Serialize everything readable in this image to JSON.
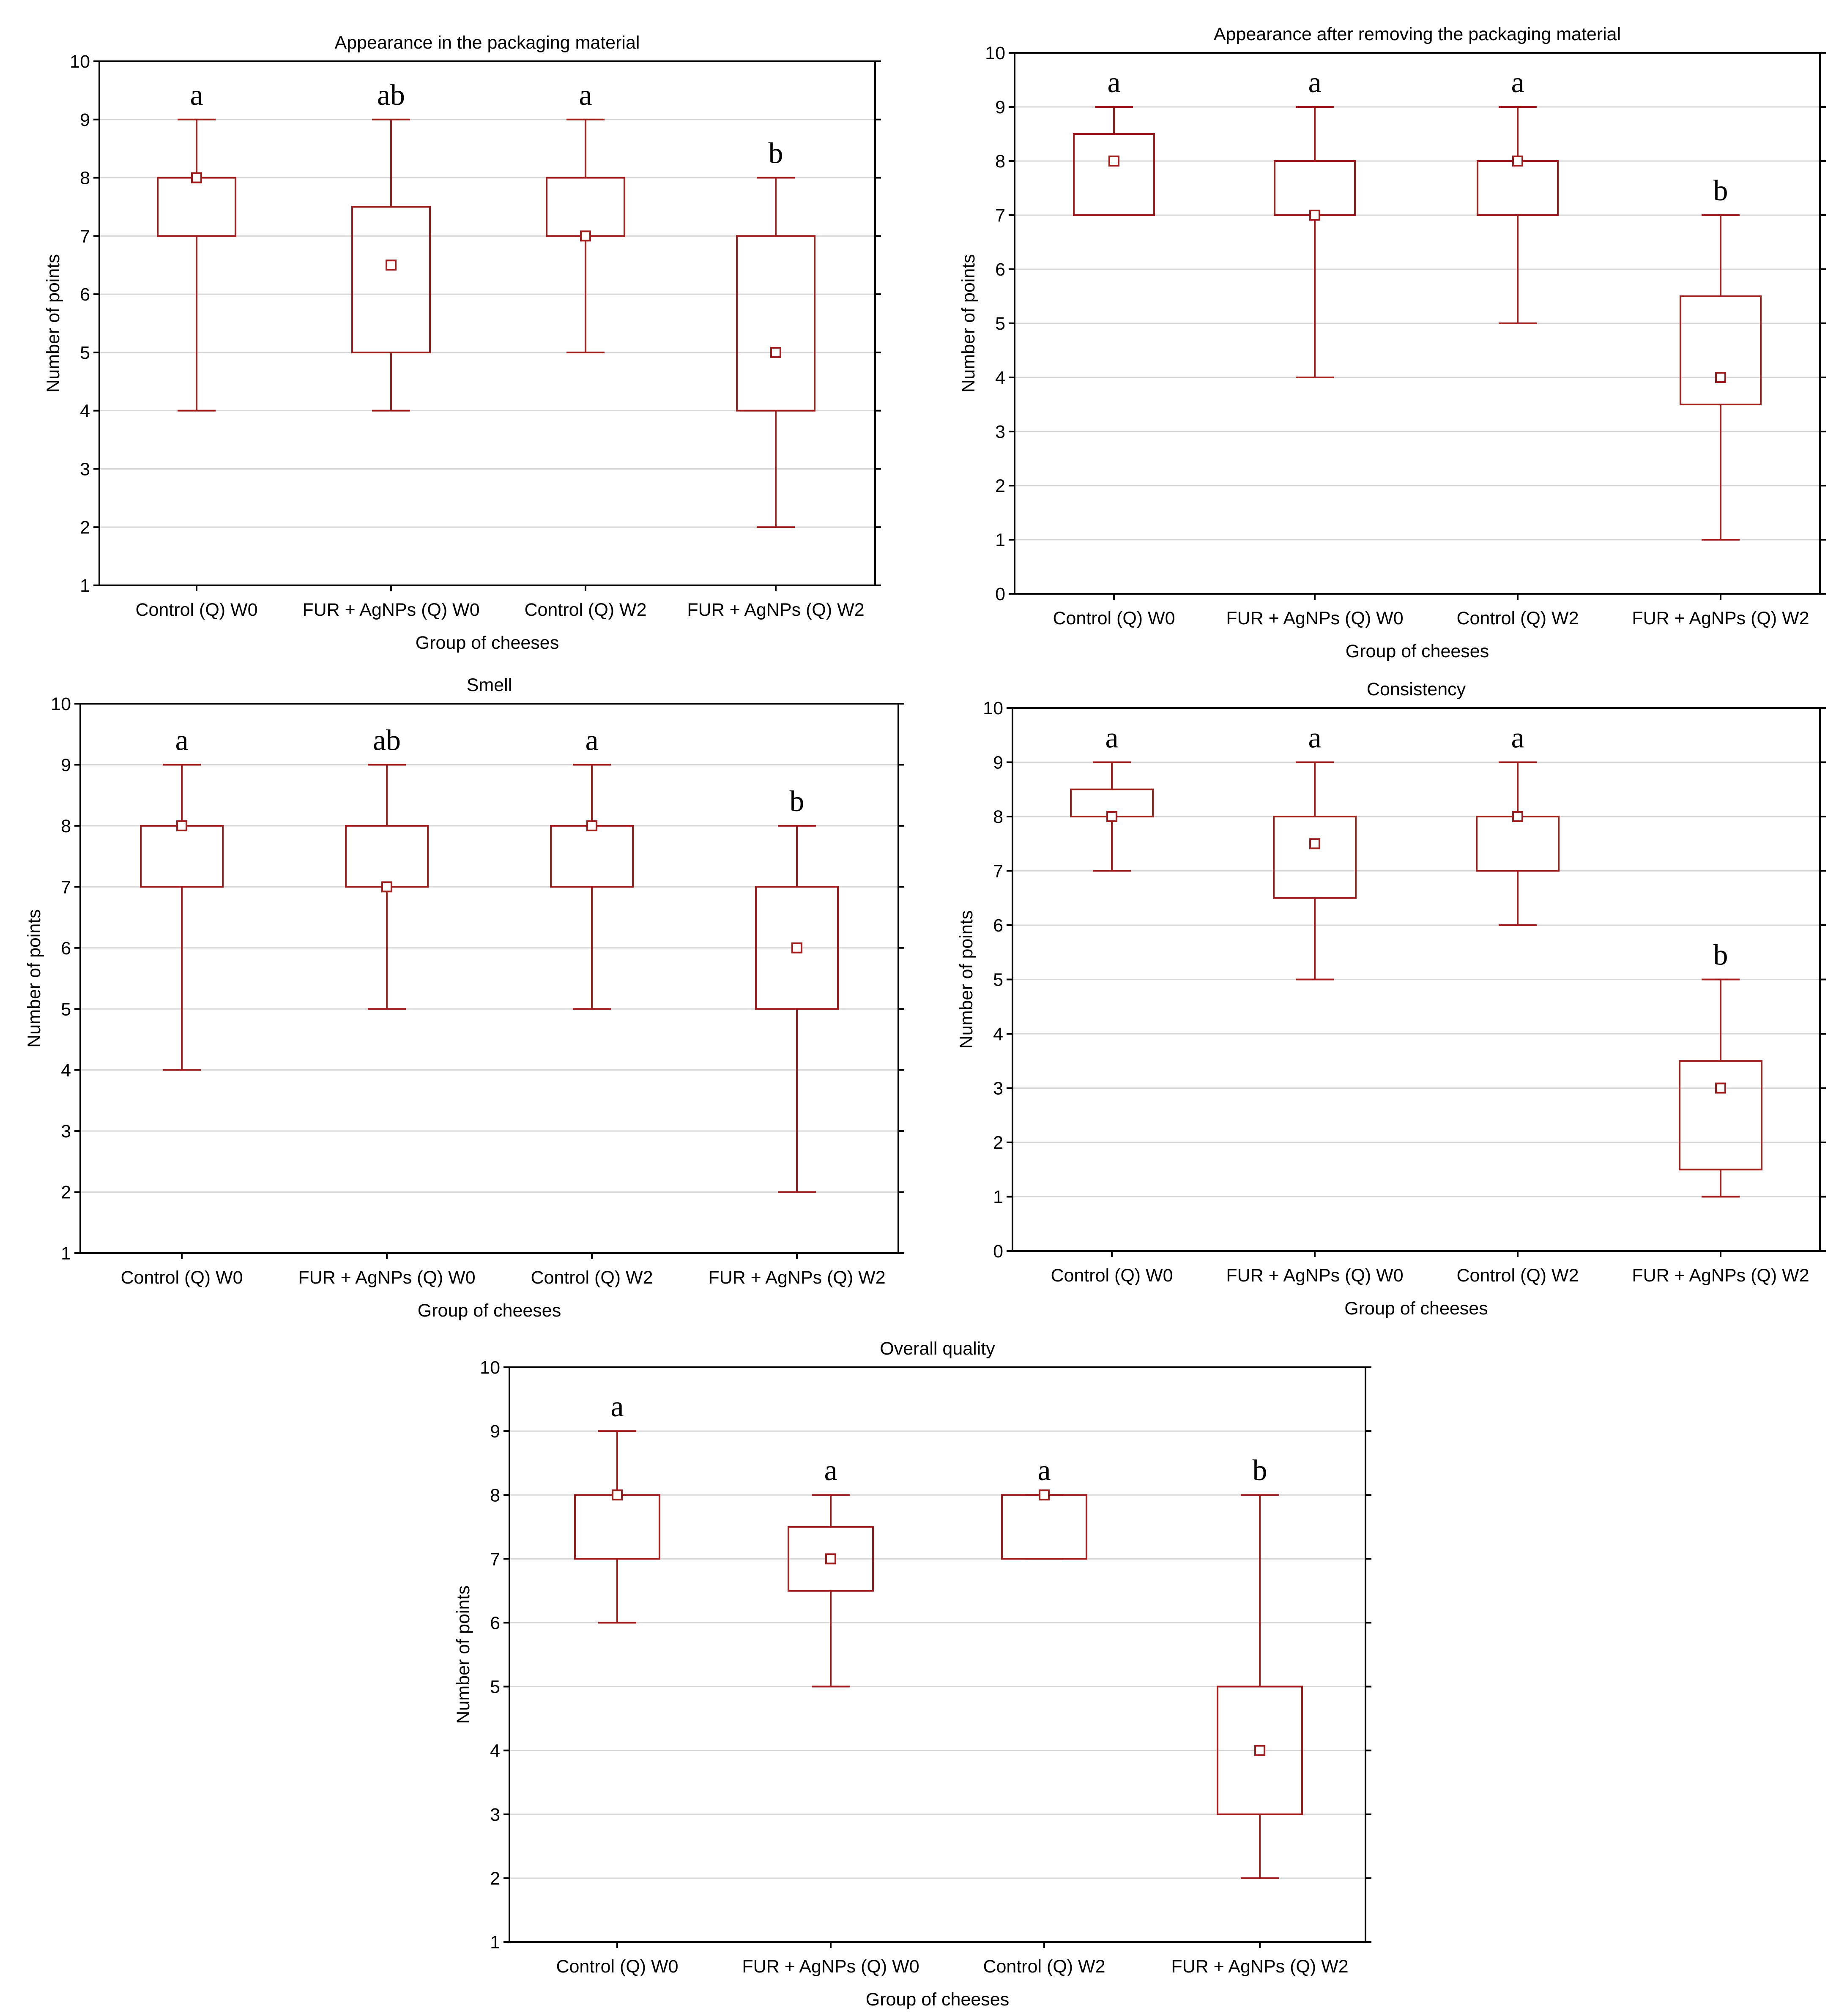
{
  "chart_data": [
    {
      "type": "box",
      "title": "Appearance in the packaging material",
      "xlabel": "Group of cheeses",
      "ylabel": "Number of points",
      "ylim": [
        1,
        10
      ],
      "y_ticks": [
        "1",
        "2",
        "3",
        "4",
        "5",
        "6",
        "7",
        "8",
        "9",
        "10"
      ],
      "grid": true,
      "categories": [
        "Control (Q) W0",
        "FUR + AgNPs (Q) W0",
        "Control (Q) W2",
        "FUR + AgNPs (Q) W2"
      ],
      "boxes": [
        {
          "min": 4,
          "q1": 7,
          "median": 8,
          "q3": 8,
          "max": 9,
          "letter": "a"
        },
        {
          "min": 4,
          "q1": 5,
          "median": 6.5,
          "q3": 7.5,
          "max": 9,
          "letter": "ab"
        },
        {
          "min": 5,
          "q1": 7,
          "median": 7,
          "q3": 8,
          "max": 9,
          "letter": "a"
        },
        {
          "min": 2,
          "q1": 4,
          "median": 5,
          "q3": 7,
          "max": 8,
          "letter": "b"
        }
      ]
    },
    {
      "type": "box",
      "title": "Appearance after removing the packaging material",
      "xlabel": "Group of cheeses",
      "ylabel": "Number of points",
      "ylim": [
        0,
        10
      ],
      "y_ticks": [
        "0",
        "1",
        "2",
        "3",
        "4",
        "5",
        "6",
        "7",
        "8",
        "9",
        "10"
      ],
      "grid": true,
      "categories": [
        "Control (Q) W0",
        "FUR + AgNPs (Q) W0",
        "Control (Q) W2",
        "FUR + AgNPs (Q) W2"
      ],
      "boxes": [
        {
          "min": 7,
          "q1": 7,
          "median": 8,
          "q3": 8.5,
          "max": 9,
          "letter": "a"
        },
        {
          "min": 4,
          "q1": 7,
          "median": 7,
          "q3": 8,
          "max": 9,
          "letter": "a"
        },
        {
          "min": 5,
          "q1": 7,
          "median": 8,
          "q3": 8,
          "max": 9,
          "letter": "a"
        },
        {
          "min": 1,
          "q1": 3.5,
          "median": 4,
          "q3": 5.5,
          "max": 7,
          "letter": "b"
        }
      ]
    },
    {
      "type": "box",
      "title": "Smell",
      "xlabel": "Group of cheeses",
      "ylabel": "Number of points",
      "ylim": [
        1,
        10
      ],
      "y_ticks": [
        "1",
        "2",
        "3",
        "4",
        "5",
        "6",
        "7",
        "8",
        "9",
        "10"
      ],
      "grid": true,
      "categories": [
        "Control (Q) W0",
        "FUR + AgNPs (Q) W0",
        "Control (Q) W2",
        "FUR + AgNPs (Q) W2"
      ],
      "boxes": [
        {
          "min": 4,
          "q1": 7,
          "median": 8,
          "q3": 8,
          "max": 9,
          "letter": "a"
        },
        {
          "min": 5,
          "q1": 7,
          "median": 7,
          "q3": 8,
          "max": 9,
          "letter": "ab"
        },
        {
          "min": 5,
          "q1": 7,
          "median": 8,
          "q3": 8,
          "max": 9,
          "letter": "a"
        },
        {
          "min": 2,
          "q1": 5,
          "median": 6,
          "q3": 7,
          "max": 8,
          "letter": "b"
        }
      ]
    },
    {
      "type": "box",
      "title": "Consistency",
      "xlabel": "Group of cheeses",
      "ylabel": "Number of points",
      "ylim": [
        0,
        10
      ],
      "y_ticks": [
        "0",
        "1",
        "2",
        "3",
        "4",
        "5",
        "6",
        "7",
        "8",
        "9",
        "10"
      ],
      "grid": true,
      "categories": [
        "Control (Q) W0",
        "FUR + AgNPs (Q) W0",
        "Control (Q) W2",
        "FUR + AgNPs (Q) W2"
      ],
      "boxes": [
        {
          "min": 7,
          "q1": 8,
          "median": 8,
          "q3": 8.5,
          "max": 9,
          "letter": "a"
        },
        {
          "min": 5,
          "q1": 6.5,
          "median": 7.5,
          "q3": 8,
          "max": 9,
          "letter": "a"
        },
        {
          "min": 6,
          "q1": 7,
          "median": 8,
          "q3": 8,
          "max": 9,
          "letter": "a"
        },
        {
          "min": 1,
          "q1": 1.5,
          "median": 3,
          "q3": 3.5,
          "max": 5,
          "letter": "b"
        }
      ]
    },
    {
      "type": "box",
      "title": "Overall quality",
      "xlabel": "Group of cheeses",
      "ylabel": "Number of points",
      "ylim": [
        1,
        10
      ],
      "y_ticks": [
        "1",
        "2",
        "3",
        "4",
        "5",
        "6",
        "7",
        "8",
        "9",
        "10"
      ],
      "grid": true,
      "categories": [
        "Control (Q) W0",
        "FUR + AgNPs (Q) W0",
        "Control (Q) W2",
        "FUR + AgNPs (Q) W2"
      ],
      "boxes": [
        {
          "min": 6,
          "q1": 7,
          "median": 8,
          "q3": 8,
          "max": 9,
          "letter": "a"
        },
        {
          "min": 5,
          "q1": 6.5,
          "median": 7,
          "q3": 7.5,
          "max": 8,
          "letter": "a"
        },
        {
          "min": 7,
          "q1": 7,
          "median": 8,
          "q3": 8,
          "max": 8,
          "letter": "a"
        },
        {
          "min": 2,
          "q1": 3,
          "median": 4,
          "q3": 5,
          "max": 8,
          "letter": "b"
        }
      ]
    }
  ],
  "colors": {
    "box": "#a01c1c",
    "grid": "#d6d6d6",
    "frame": "#000000"
  }
}
